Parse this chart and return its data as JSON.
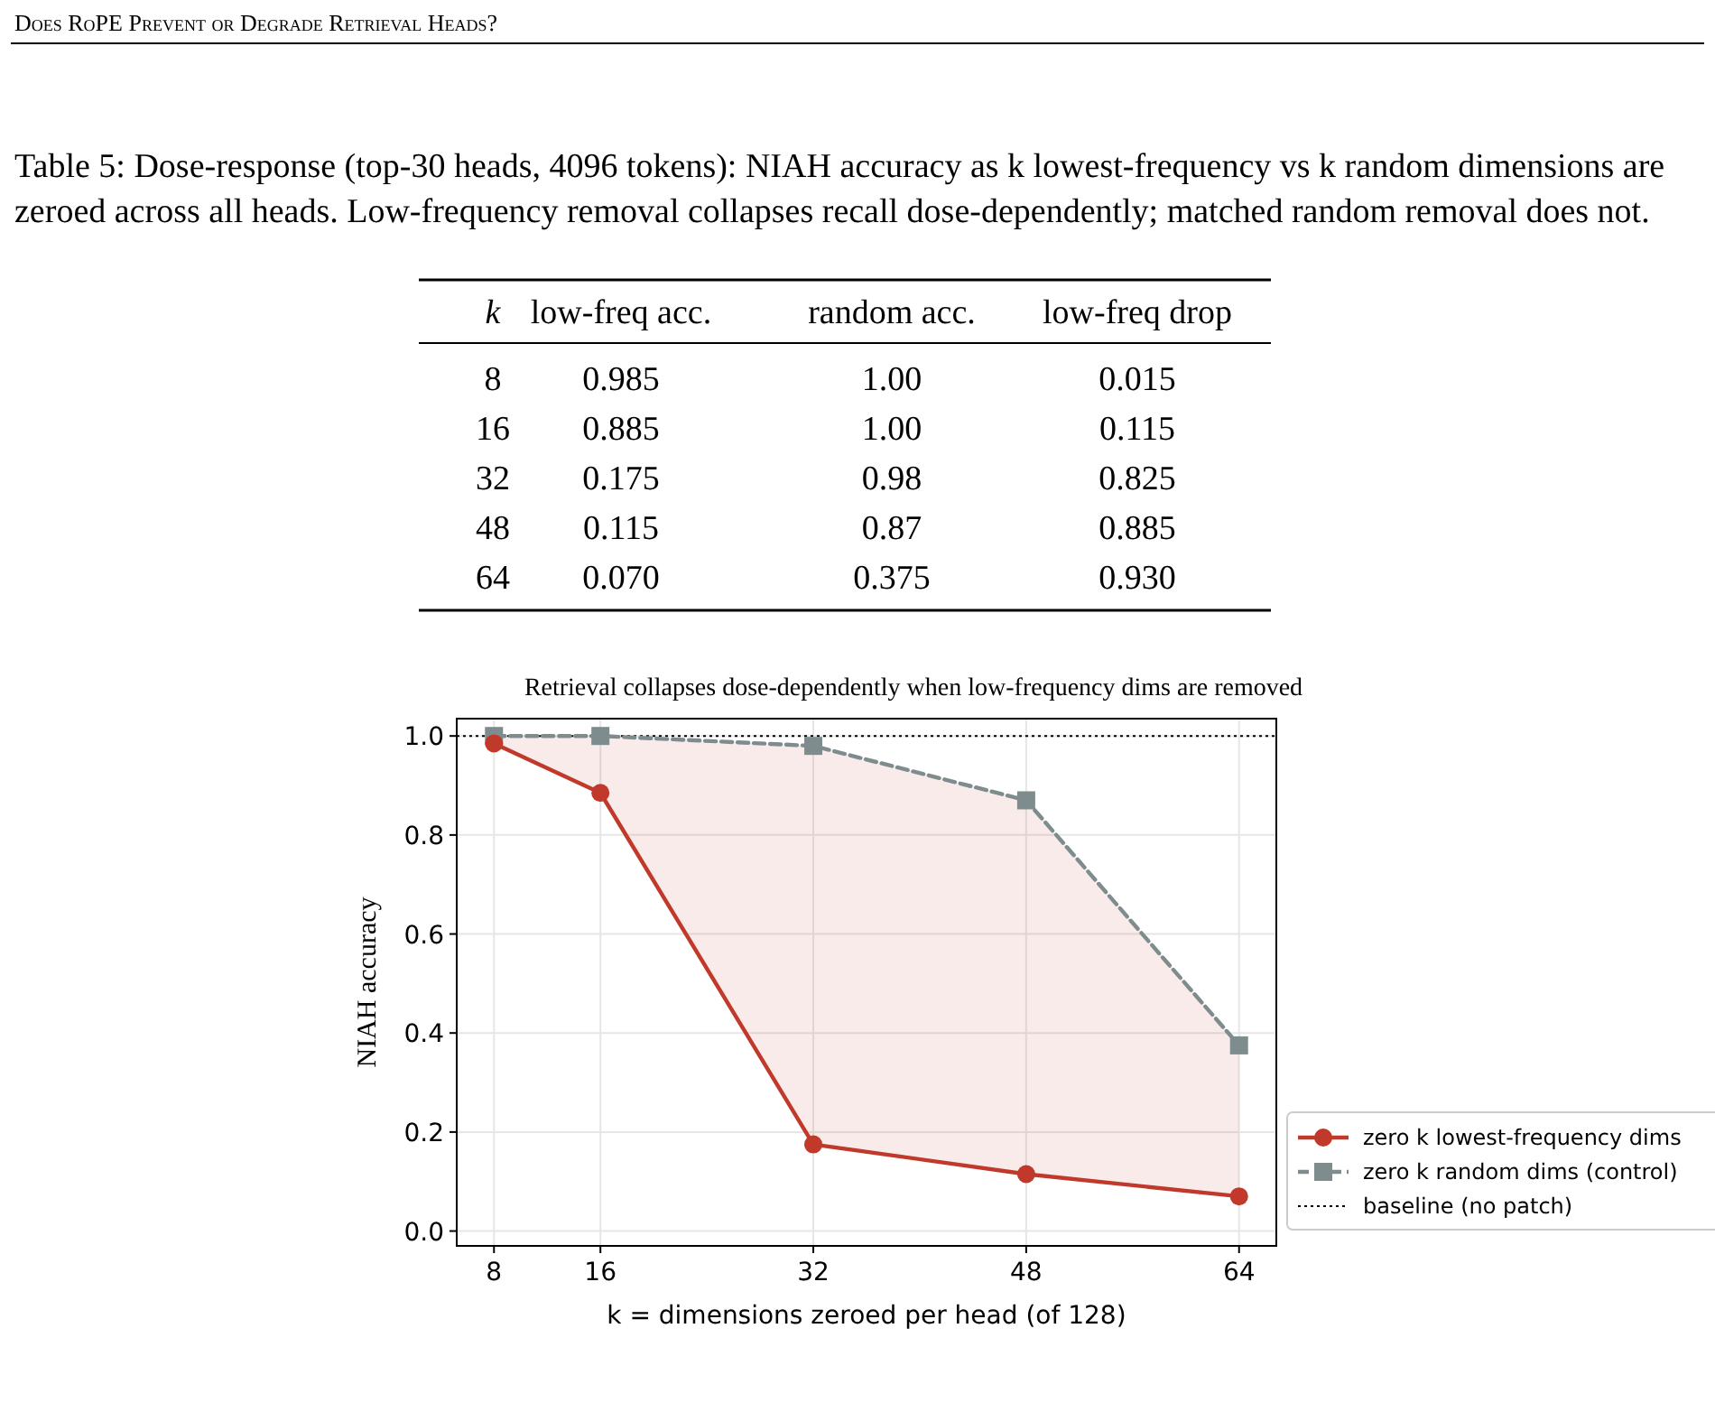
{
  "chart_data": {
    "type": "line",
    "title": "Retrieval collapses dose-dependently when low-frequency dims are removed",
    "xlabel": "k = dimensions zeroed per head (of 128)",
    "ylabel": "NIAH accuracy",
    "x": [
      8,
      16,
      32,
      48,
      64
    ],
    "series": [
      {
        "name": "zero k lowest-frequency dims",
        "color": "#c0392b",
        "values": [
          0.985,
          0.885,
          0.175,
          0.115,
          0.07
        ],
        "marker": "circle",
        "line_style": "solid",
        "lower": [
          0.985,
          0.885,
          0.175,
          0.115,
          0.07
        ],
        "upper": [
          1.0,
          1.0,
          0.98,
          0.87,
          0.375
        ]
      },
      {
        "name": "zero k random dims (control)",
        "color": "#7f8c8d",
        "values": [
          1.0,
          1.0,
          0.98,
          0.87,
          0.375
        ],
        "marker": "square",
        "line_style": "dashed"
      }
    ],
    "ref_lines": [
      {
        "axis": "y",
        "value": 1.0,
        "label": "baseline (no patch)",
        "color": "#000000",
        "line_style": "dotted"
      }
    ],
    "xlim": [
      5.2,
      66.8
    ],
    "xticks": [
      8,
      16,
      32,
      48,
      64
    ],
    "ylim": [
      -0.03,
      1.035
    ],
    "yticks": [
      {
        "value": 0,
        "label": "0.0"
      },
      {
        "value": 0.2,
        "label": "0.2"
      },
      {
        "value": 0.4,
        "label": "0.4"
      },
      {
        "value": 0.6,
        "label": "0.6"
      },
      {
        "value": 0.8,
        "label": "0.8"
      },
      {
        "value": 1,
        "label": "1.0"
      }
    ],
    "grid": true,
    "legend": "right",
    "annotations": [
      "Does RoPE Prevent or Degrade Retrieval Heads?",
      "Table 5: Dose-response (top-30 heads, 4096 tokens): NIAH accuracy as k lowest-frequency vs k random dimensions are zeroed across all heads. Low-frequency removal collapses recall dose-dependently; matched random removal does not.",
      "k\tlow-freq acc.\trandom acc.\tlow-freq drop",
      "8\t0.985\t1.00\t0.015",
      "16\t0.885\t1.00\t0.115",
      "32\t0.175\t0.98\t0.825",
      "48\t0.115\t0.87\t0.885",
      "64\t0.070\t0.375\t0.930"
    ]
  }
}
